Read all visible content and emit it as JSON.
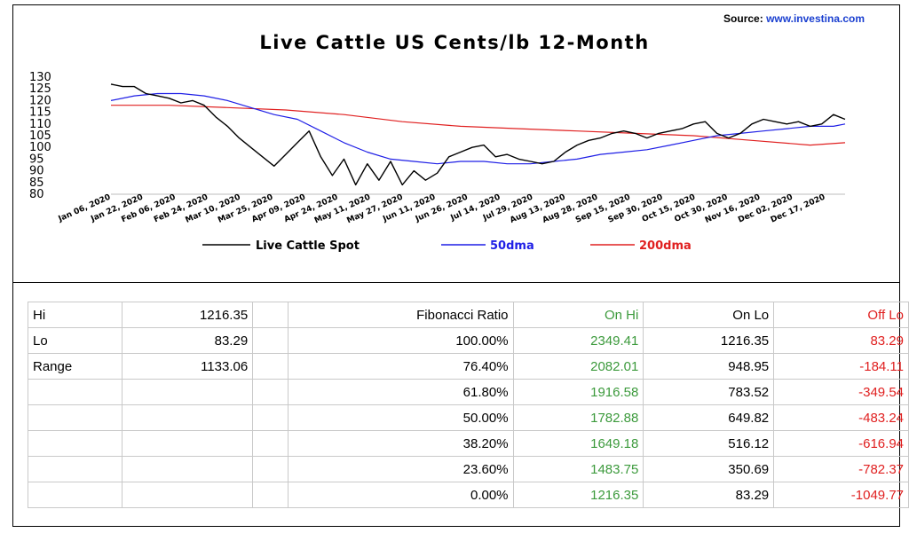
{
  "source": {
    "label": "Source:",
    "url": "www.investina.com"
  },
  "chart_data": {
    "type": "line",
    "title": "Live Cattle US Cents/lb  12-Month",
    "y_ticks": [
      130,
      125,
      120,
      115,
      110,
      105,
      100,
      95,
      90,
      85,
      80
    ],
    "ylim": [
      80,
      130
    ],
    "x_ticks": [
      "Jan 06, 2020",
      "Jan 22, 2020",
      "Feb 06, 2020",
      "Feb 24, 2020",
      "Mar 10, 2020",
      "Mar 25, 2020",
      "Apr 09, 2020",
      "Apr 24, 2020",
      "May 11, 2020",
      "May 27, 2020",
      "Jun 11, 2020",
      "Jun 26, 2020",
      "Jul 14, 2020",
      "Jul 29, 2020",
      "Aug 13, 2020",
      "Aug 28, 2020",
      "Sep 15, 2020",
      "Sep 30, 2020",
      "Oct 15, 2020",
      "Oct 30, 2020",
      "Nov 16, 2020",
      "Dec 02, 2020",
      "Dec 17, 2020"
    ],
    "x_range": [
      0,
      252
    ],
    "grid": false,
    "legend_position": "bottom",
    "series": [
      {
        "name": "Live Cattle Spot",
        "color": "#000000",
        "x": [
          0,
          4,
          8,
          12,
          16,
          20,
          24,
          28,
          32,
          36,
          40,
          44,
          48,
          52,
          56,
          60,
          64,
          68,
          72,
          76,
          80,
          84,
          88,
          92,
          96,
          100,
          104,
          108,
          112,
          116,
          120,
          124,
          128,
          132,
          136,
          140,
          144,
          148,
          152,
          156,
          160,
          164,
          168,
          172,
          176,
          180,
          184,
          188,
          192,
          196,
          200,
          204,
          208,
          212,
          216,
          220,
          224,
          228,
          232,
          236,
          240,
          244,
          248,
          252
        ],
        "y": [
          127,
          126,
          126,
          123,
          122,
          121,
          119,
          120,
          118,
          113,
          109,
          104,
          100,
          96,
          92,
          97,
          102,
          107,
          96,
          88,
          95,
          84,
          93,
          86,
          94,
          84,
          90,
          86,
          89,
          96,
          98,
          100,
          101,
          96,
          97,
          95,
          94,
          93,
          94,
          98,
          101,
          103,
          104,
          106,
          107,
          106,
          104,
          106,
          107,
          108,
          110,
          111,
          106,
          104,
          106,
          110,
          112,
          111,
          110,
          111,
          109,
          110,
          114,
          112
        ]
      },
      {
        "name": "50dma",
        "color": "#1f1fe6",
        "x": [
          0,
          8,
          16,
          24,
          32,
          40,
          48,
          56,
          64,
          72,
          80,
          88,
          96,
          104,
          112,
          120,
          128,
          136,
          144,
          152,
          160,
          168,
          176,
          184,
          192,
          200,
          208,
          216,
          224,
          232,
          240,
          248,
          252
        ],
        "y": [
          120,
          122,
          123,
          123,
          122,
          120,
          117,
          114,
          112,
          107,
          102,
          98,
          95,
          94,
          93,
          94,
          94,
          93,
          93,
          94,
          95,
          97,
          98,
          99,
          101,
          103,
          105,
          106,
          107,
          108,
          109,
          109,
          110
        ]
      },
      {
        "name": "200dma",
        "color": "#e02020",
        "x": [
          0,
          20,
          40,
          60,
          80,
          100,
          120,
          140,
          160,
          180,
          200,
          220,
          240,
          252
        ],
        "y": [
          118,
          118,
          117,
          116,
          114,
          111,
          109,
          108,
          107,
          106,
          105,
          103,
          101,
          102
        ]
      }
    ]
  },
  "table": {
    "rows": [
      [
        "Hi",
        "1216.35",
        "",
        "Fibonacci  Ratio",
        "On Hi",
        "On Lo",
        "Off Lo"
      ],
      [
        "Lo",
        "83.29",
        "",
        "100.00%",
        "2349.41",
        "1216.35",
        "83.29"
      ],
      [
        "Range",
        "1133.06",
        "",
        "76.40%",
        "2082.01",
        "948.95",
        "-184.11"
      ],
      [
        "",
        "",
        "",
        "61.80%",
        "1916.58",
        "783.52",
        "-349.54"
      ],
      [
        "",
        "",
        "",
        "50.00%",
        "1782.88",
        "649.82",
        "-483.24"
      ],
      [
        "",
        "",
        "",
        "38.20%",
        "1649.18",
        "516.12",
        "-616.94"
      ],
      [
        "",
        "",
        "",
        "23.60%",
        "1483.75",
        "350.69",
        "-782.37"
      ],
      [
        "",
        "",
        "",
        "0.00%",
        "1216.35",
        "83.29",
        "-1049.77"
      ]
    ]
  },
  "colors": {
    "green": "#3c9a3c",
    "red": "#e02020",
    "blue": "#1f1fe6"
  }
}
